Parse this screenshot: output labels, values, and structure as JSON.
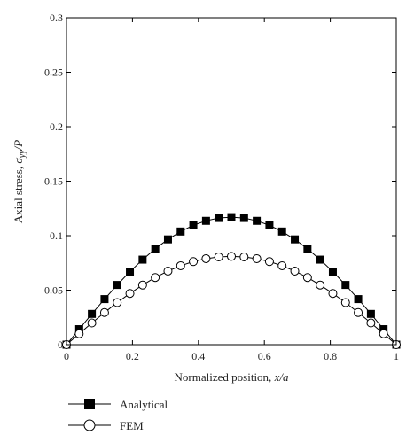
{
  "chart_data": {
    "type": "line",
    "xlabel": "Normalized position, ",
    "xlabel_var": "x/a",
    "ylabel": "Axial stress, ",
    "ylabel_var": "σ",
    "ylabel_sub": "yy",
    "ylabel_tail": "/P",
    "xlim": [
      0,
      1
    ],
    "ylim": [
      0,
      0.3
    ],
    "x_ticks": [
      0,
      0.2,
      0.4,
      0.6,
      0.8,
      1
    ],
    "x_tick_labels": [
      "0",
      "0.2",
      "0.4",
      "0.6",
      "0.8",
      "1"
    ],
    "y_ticks": [
      0,
      0.05,
      0.1,
      0.15,
      0.2,
      0.25,
      0.3
    ],
    "y_tick_labels": [
      "0",
      "0.05",
      "0.1",
      "0.15",
      "0.2",
      "0.25",
      "0.3"
    ],
    "grid": false,
    "legend_position": "below-left",
    "x": [
      0,
      0.0385,
      0.0769,
      0.1154,
      0.1538,
      0.1923,
      0.2308,
      0.2692,
      0.3077,
      0.3462,
      0.3846,
      0.4231,
      0.4615,
      0.5,
      0.5385,
      0.5769,
      0.6154,
      0.6538,
      0.6923,
      0.7308,
      0.7692,
      0.8077,
      0.8462,
      0.8846,
      0.9231,
      0.9615,
      1
    ],
    "series": [
      {
        "name": "Analytical",
        "marker": "filled-square",
        "color": "#000000",
        "values": [
          0,
          0.0142,
          0.0282,
          0.0418,
          0.0548,
          0.067,
          0.078,
          0.088,
          0.0966,
          0.1038,
          0.1095,
          0.1136,
          0.1162,
          0.117,
          0.1162,
          0.1136,
          0.1095,
          0.1038,
          0.0966,
          0.088,
          0.078,
          0.067,
          0.0548,
          0.0418,
          0.0282,
          0.0142,
          0
        ]
      },
      {
        "name": "FEM",
        "marker": "open-circle",
        "color": "#000000",
        "values": [
          0,
          0.01,
          0.0199,
          0.0295,
          0.0386,
          0.047,
          0.0547,
          0.0616,
          0.0675,
          0.0724,
          0.0762,
          0.0789,
          0.0805,
          0.081,
          0.0805,
          0.0789,
          0.0762,
          0.0724,
          0.0675,
          0.0616,
          0.0547,
          0.047,
          0.0386,
          0.0295,
          0.0199,
          0.01,
          0
        ]
      }
    ]
  }
}
